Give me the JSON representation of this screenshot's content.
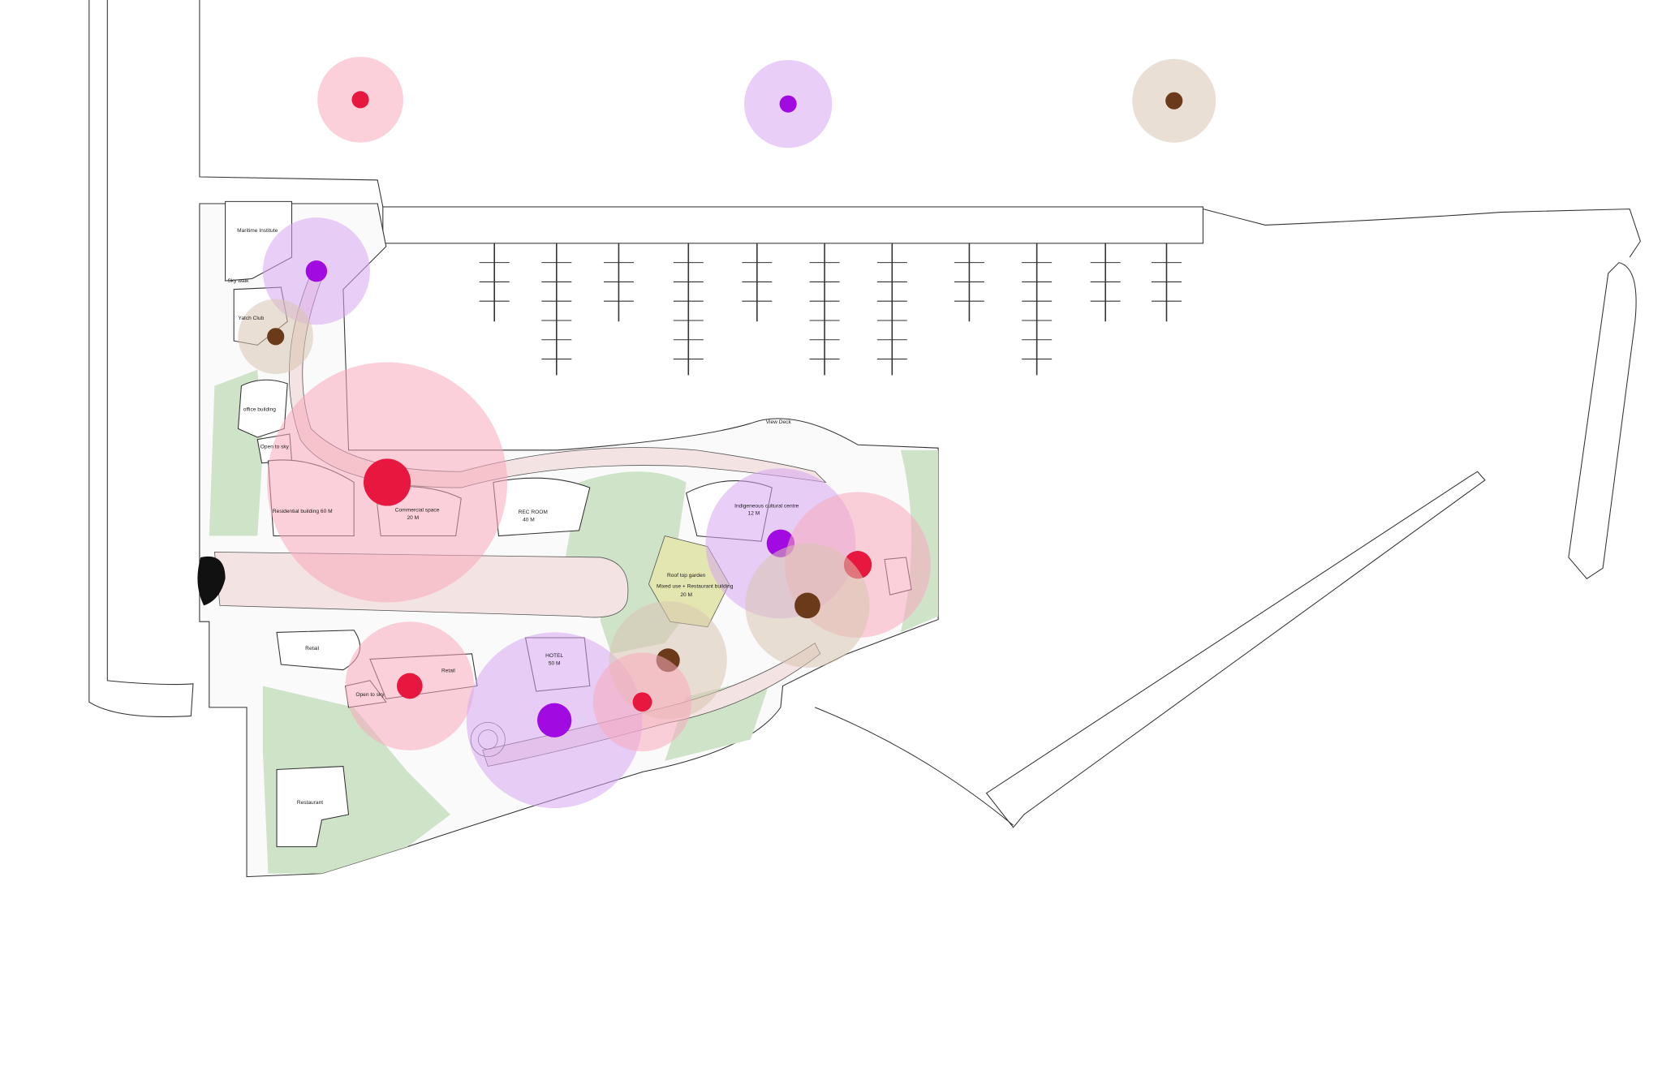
{
  "labels": {
    "maritime": "Maritime Institute",
    "skywalk": "Sky walk",
    "yacht": "Yatch Club",
    "office": "office building",
    "open1": "Open to sky",
    "residential": "Residential building   60 M",
    "commercial": [
      "Commercial space",
      "20 M"
    ],
    "rec": [
      "REC ROOM",
      "40 M"
    ],
    "viewdeck": "View Deck",
    "cultural": [
      "Indigeneous cultural centre",
      "12 M"
    ],
    "rooftop": "Roof top garden",
    "mixed": [
      "Mixed use + Restaurant building",
      "20 M"
    ],
    "retail1": "Retail",
    "retail2": "Retail",
    "open2": "Open to sky",
    "hotel": [
      "HOTEL",
      "50 M"
    ],
    "restaurant": "Restaurant"
  }
}
